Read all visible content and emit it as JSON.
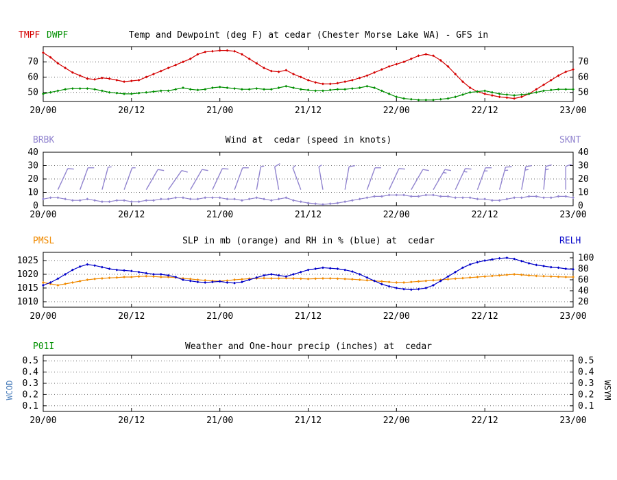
{
  "station": "cedar (Chester Morse Lake WA)",
  "model": "GFS",
  "colors": {
    "temp": "#d40000",
    "dewpoint": "#008f00",
    "wind": "#9184cf",
    "slp": "#f08a00",
    "rh": "#0000c8",
    "precip_label": "#008f00",
    "wcod": "#4f81bd",
    "axis": "#000000"
  },
  "header_labels": {
    "p1": {
      "left": [
        "TMPF",
        "DWPF"
      ],
      "title": "Temp and Dewpoint (deg F) at cedar (Chester Morse Lake WA) - GFS in"
    },
    "p2": {
      "left": "BRBK",
      "title": "Wind at  cedar (speed in knots)",
      "right": "SKNT"
    },
    "p3": {
      "left": "PMSL",
      "title": "SLP in mb (orange) and RH in % (blue) at  cedar",
      "right": "RELH"
    },
    "p4": {
      "left": "P01I",
      "title": "Weather and One-hour precip (inches) at  cedar",
      "side_left": "WCOD",
      "side_right": "WSYM"
    }
  },
  "chart_data": [
    {
      "type": "line",
      "title": "Temp and Dewpoint (deg F) at cedar (Chester Morse Lake WA) - GFS in",
      "x_tick_hours": [
        0,
        12,
        24,
        36,
        48,
        60,
        72
      ],
      "x_tick_labels": [
        "20/00",
        "20/12",
        "21/00",
        "21/12",
        "22/00",
        "22/12",
        "23/00"
      ],
      "y_left": {
        "lim": [
          44,
          80
        ],
        "ticks": [
          50,
          60,
          70
        ]
      },
      "y_right": {
        "lim": [
          44,
          80
        ],
        "ticks": [
          50,
          60,
          70
        ]
      },
      "series": [
        {
          "name": "TMPF",
          "axis": "left",
          "color": "#d40000",
          "values": [
            76,
            73,
            69,
            66,
            63,
            61,
            59,
            58.5,
            59.5,
            59,
            58,
            57,
            57.5,
            58,
            60,
            62,
            64,
            66,
            68,
            70,
            72,
            75,
            76.5,
            77,
            77.5,
            77.5,
            77,
            75,
            72,
            69,
            66,
            64,
            63.5,
            64.5,
            62,
            60,
            58,
            56.5,
            55.5,
            55.5,
            56,
            57,
            58,
            59.5,
            61,
            63,
            65,
            67,
            68.5,
            70,
            72,
            74,
            75,
            74,
            71,
            67,
            62,
            57,
            53,
            50.5,
            49,
            48,
            47,
            46.5,
            46,
            47,
            49,
            52,
            55,
            58,
            61,
            63.5,
            65
          ]
        },
        {
          "name": "DWPF",
          "axis": "left",
          "color": "#008f00",
          "values": [
            49,
            50,
            51,
            52,
            52.5,
            52.5,
            52.5,
            52,
            51,
            50,
            49.5,
            49,
            49,
            49.5,
            50,
            50.5,
            51,
            51,
            52,
            53,
            52,
            51.5,
            52,
            53,
            53.5,
            53,
            52.5,
            52,
            52,
            52.5,
            52,
            52,
            53,
            54,
            53,
            52,
            51.5,
            51,
            51,
            51.5,
            52,
            52,
            52.5,
            53,
            54,
            53,
            51,
            49,
            47,
            46,
            45.5,
            45,
            45,
            45,
            45.5,
            46,
            47,
            48.5,
            50,
            50.5,
            51,
            50,
            49,
            48.5,
            48,
            48.5,
            49,
            50,
            51,
            51.5,
            52,
            52,
            52
          ]
        }
      ]
    },
    {
      "type": "line",
      "title": "Wind at  cedar (speed in knots)",
      "x_tick_hours": [
        0,
        12,
        24,
        36,
        48,
        60,
        72
      ],
      "x_tick_labels": [
        "20/00",
        "20/12",
        "21/00",
        "21/12",
        "22/00",
        "22/12",
        "23/00"
      ],
      "y_left": {
        "lim": [
          0,
          40
        ],
        "ticks": [
          0,
          10,
          20,
          30,
          40
        ]
      },
      "y_right": {
        "lim": [
          0,
          40
        ],
        "ticks": [
          0,
          10,
          20,
          30,
          40
        ]
      },
      "series": [
        {
          "name": "SKNT",
          "axis": "left",
          "color": "#9184cf",
          "values": [
            5,
            6,
            6,
            5,
            4,
            4,
            5,
            4,
            3,
            3,
            4,
            4,
            3,
            3,
            4,
            4,
            5,
            5,
            6,
            6,
            5,
            5,
            6,
            6,
            6,
            5,
            5,
            4,
            5,
            6,
            5,
            4,
            5,
            6,
            4,
            3,
            2,
            1.5,
            1,
            1.5,
            2,
            3,
            4,
            5,
            6,
            7,
            7,
            8,
            8,
            8,
            7,
            7,
            8,
            8,
            7,
            7,
            6,
            6,
            6,
            5,
            5,
            4,
            4,
            5,
            6,
            6,
            7,
            7,
            6,
            6,
            7,
            7,
            6
          ]
        }
      ],
      "barbs": {
        "name": "BRBK",
        "color": "#9184cf",
        "base_value": 12,
        "length": 34,
        "items": [
          [
            2,
            25,
            10
          ],
          [
            5,
            20,
            10
          ],
          [
            8,
            15,
            5
          ],
          [
            11,
            20,
            5
          ],
          [
            14,
            30,
            10
          ],
          [
            17,
            35,
            10
          ],
          [
            20,
            30,
            10
          ],
          [
            23,
            25,
            10
          ],
          [
            26,
            20,
            10
          ],
          [
            29,
            10,
            5
          ],
          [
            32,
            350,
            10
          ],
          [
            35,
            340,
            5
          ],
          [
            38,
            350,
            5
          ],
          [
            41,
            10,
            10
          ],
          [
            44,
            20,
            10
          ],
          [
            47,
            25,
            10
          ],
          [
            50,
            30,
            10
          ],
          [
            53,
            30,
            15
          ],
          [
            56,
            25,
            15
          ],
          [
            59,
            20,
            15
          ],
          [
            62,
            15,
            15
          ],
          [
            65,
            10,
            15
          ],
          [
            68,
            5,
            15
          ],
          [
            71,
            0,
            10
          ]
        ]
      }
    },
    {
      "type": "line",
      "title": "SLP in mb (orange) and RH in % (blue) at  cedar",
      "x_tick_hours": [
        0,
        12,
        24,
        36,
        48,
        60,
        72
      ],
      "x_tick_labels": [
        "20/00",
        "20/12",
        "21/00",
        "21/12",
        "22/00",
        "22/12",
        "23/00"
      ],
      "y_left": {
        "lim": [
          1008,
          1028
        ],
        "ticks": [
          1010,
          1015,
          1020,
          1025
        ]
      },
      "y_right": {
        "lim": [
          10,
          110
        ],
        "ticks": [
          20,
          40,
          60,
          80,
          100
        ]
      },
      "series": [
        {
          "name": "PMSL",
          "axis": "left",
          "color": "#f08a00",
          "values": [
            1017,
            1016.5,
            1016,
            1016.5,
            1017,
            1017.5,
            1018,
            1018.3,
            1018.5,
            1018.7,
            1018.8,
            1019,
            1019,
            1019.2,
            1019.3,
            1019.2,
            1019,
            1019,
            1018.8,
            1018.5,
            1018.3,
            1018,
            1017.8,
            1017.6,
            1017.5,
            1017.7,
            1018,
            1018.2,
            1018.4,
            1018.5,
            1018.6,
            1018.5,
            1018.5,
            1018.6,
            1018.5,
            1018.4,
            1018.3,
            1018.4,
            1018.5,
            1018.5,
            1018.4,
            1018.3,
            1018.2,
            1018,
            1017.8,
            1017.6,
            1017.4,
            1017.2,
            1017,
            1017,
            1017.2,
            1017.4,
            1017.6,
            1017.8,
            1018,
            1018.2,
            1018.4,
            1018.6,
            1018.8,
            1019,
            1019.2,
            1019.4,
            1019.6,
            1019.8,
            1020,
            1019.8,
            1019.6,
            1019.4,
            1019.3,
            1019.2,
            1019.1,
            1019,
            1019
          ]
        },
        {
          "name": "RELH",
          "axis": "right",
          "color": "#0000c8",
          "values": [
            50,
            55,
            62,
            70,
            78,
            84,
            88,
            86,
            83,
            80,
            78,
            77,
            76,
            74,
            72,
            70,
            70,
            68,
            65,
            60,
            58,
            56,
            55,
            56,
            57,
            55,
            54,
            56,
            60,
            64,
            68,
            70,
            68,
            66,
            70,
            74,
            78,
            80,
            82,
            81,
            80,
            78,
            75,
            70,
            64,
            58,
            52,
            48,
            45,
            43,
            42,
            43,
            45,
            50,
            58,
            66,
            74,
            82,
            88,
            92,
            95,
            97,
            99,
            100,
            98,
            94,
            90,
            87,
            85,
            83,
            82,
            80,
            79
          ]
        }
      ]
    },
    {
      "type": "line",
      "title": "Weather and One-hour precip (inches) at  cedar",
      "x_tick_hours": [
        0,
        12,
        24,
        36,
        48,
        60,
        72
      ],
      "x_tick_labels": [
        "20/00",
        "20/12",
        "21/00",
        "21/12",
        "22/00",
        "22/12",
        "23/00"
      ],
      "y_left": {
        "lim": [
          0.05,
          0.55
        ],
        "ticks": [
          0.1,
          0.2,
          0.3,
          0.4,
          0.5
        ]
      },
      "y_right": {
        "lim": [
          0.05,
          0.55
        ],
        "ticks": [
          0.1,
          0.2,
          0.3,
          0.4,
          0.5
        ]
      },
      "series": []
    }
  ]
}
